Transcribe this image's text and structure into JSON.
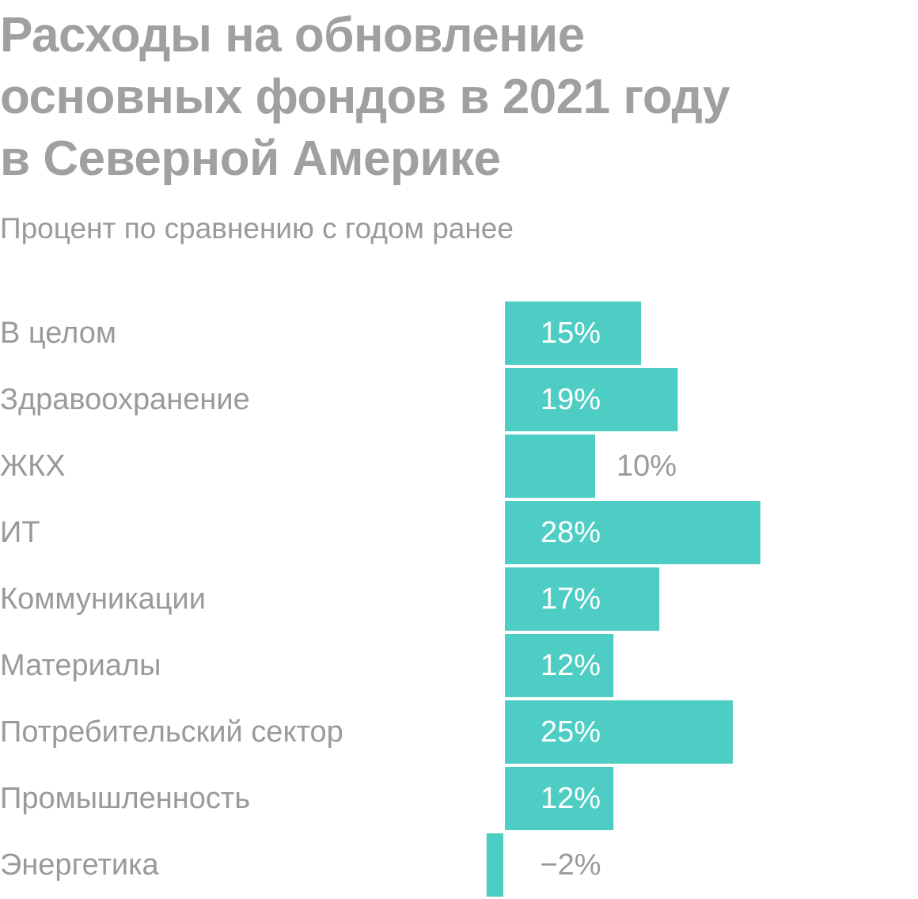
{
  "title_lines": [
    "Расходы на обновление",
    "основных фондов в 2021 году",
    "в Северной Америке"
  ],
  "subtitle": "Процент по сравнению с годом ранее",
  "colors": {
    "bar": "#4ecdc4",
    "text": "#9a9a9a",
    "title": "#a0a0a0"
  },
  "chart_data": {
    "type": "bar",
    "orientation": "horizontal",
    "title": "Расходы на обновление основных фондов в 2021 году в Северной Америке",
    "subtitle": "Процент по сравнению с годом ранее",
    "unit": "%",
    "categories": [
      "В целом",
      "Здравоохранение",
      "ЖКХ",
      "ИТ",
      "Коммуникации",
      "Материалы",
      "Потребительский сектор",
      "Промышленность",
      "Энергетика"
    ],
    "values": [
      15,
      19,
      10,
      28,
      17,
      12,
      25,
      12,
      -2
    ],
    "labels": [
      "15%",
      "19%",
      "10%",
      "28%",
      "17%",
      "12%",
      "25%",
      "12%",
      "−2%"
    ],
    "xlim": [
      -2,
      28
    ],
    "grid": false,
    "legend": "none"
  }
}
